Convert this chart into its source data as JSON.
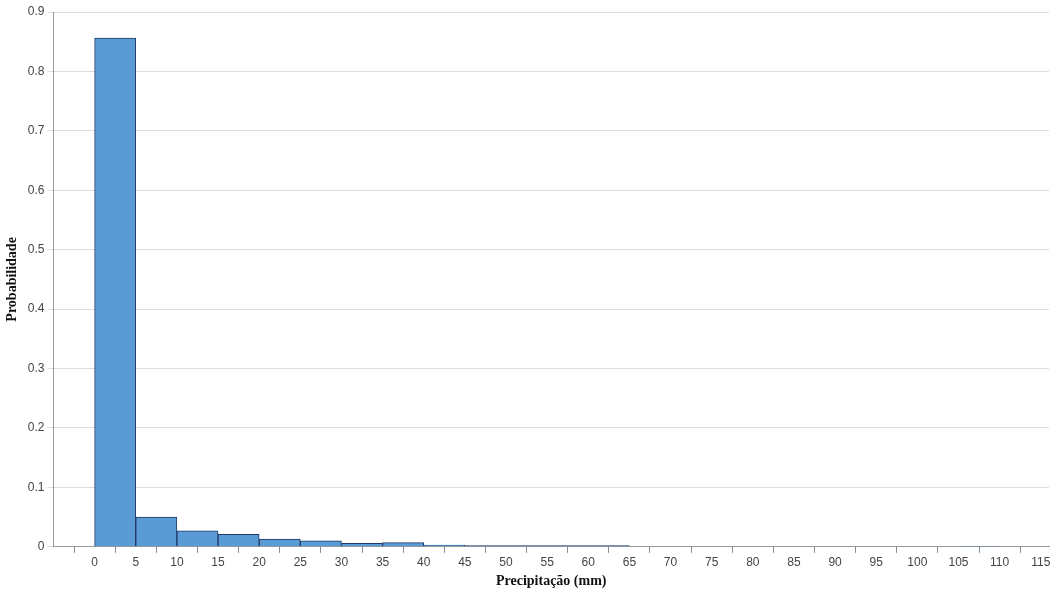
{
  "chart_data": {
    "type": "histogram",
    "xlabel": "Precipitação (mm)",
    "ylabel": "Probabilidade",
    "bins": [
      0,
      5,
      10,
      15,
      20,
      25,
      30,
      35,
      40,
      45,
      50,
      55,
      60,
      65,
      70,
      75,
      80,
      85,
      90,
      95,
      100,
      105,
      110,
      115
    ],
    "values": [
      0.856,
      0.05,
      0.027,
      0.021,
      0.013,
      0.01,
      0.006,
      0.007,
      0.003,
      0.002,
      0.002,
      0.002,
      0.002,
      0,
      0,
      0,
      0,
      0,
      0,
      0,
      0,
      0.001,
      0
    ],
    "color": "#5b9bd5",
    "xlim": [
      -5,
      116
    ],
    "xticks": [
      0,
      5,
      10,
      15,
      20,
      25,
      30,
      35,
      40,
      45,
      50,
      55,
      60,
      65,
      70,
      75,
      80,
      85,
      90,
      95,
      100,
      105,
      110,
      115
    ],
    "ylim": [
      0,
      0.9
    ],
    "yticks": [
      0,
      0.1,
      0.2,
      0.3,
      0.4,
      0.5,
      0.6,
      0.7,
      0.8,
      0.9
    ],
    "grid": "y"
  }
}
